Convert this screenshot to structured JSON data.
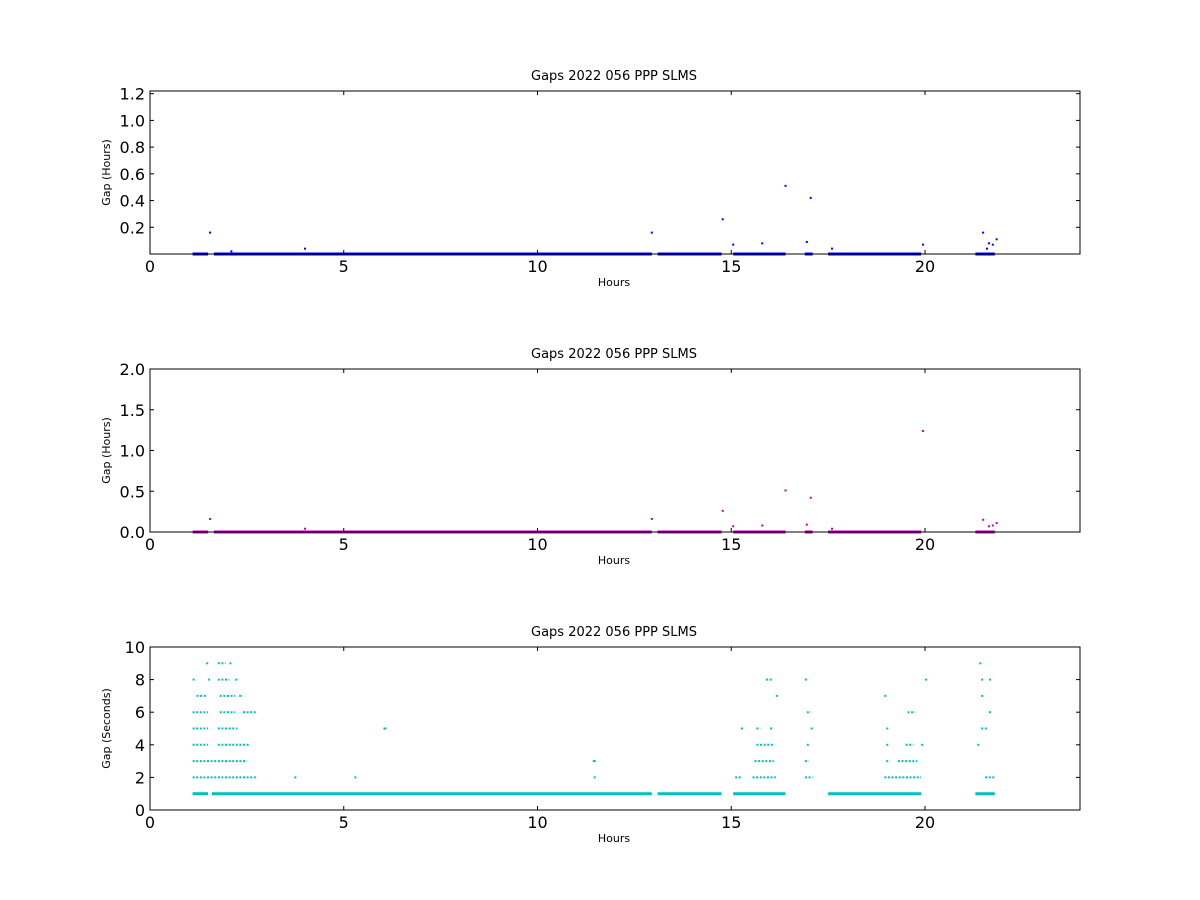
{
  "chart_data": [
    {
      "type": "scatter",
      "title": "Gaps 2022 056 PPP  SLMS",
      "xlabel": "Hours",
      "ylabel": "Gap (Hours)",
      "xlim": [
        0,
        24
      ],
      "ylim": [
        0,
        1.22
      ],
      "xticks": [
        0,
        5,
        10,
        15,
        20
      ],
      "yticks": [
        0.2,
        0.4,
        0.6,
        0.8,
        1.0,
        1.2
      ],
      "ytick_labels": [
        "0.2",
        "0.4",
        "0.6",
        "0.8",
        "1.0",
        "1.2"
      ],
      "xtick_labels": [
        "0",
        "5",
        "10",
        "15",
        "20"
      ],
      "color": "#0000ff",
      "base_segments": [
        [
          1.1,
          1.5
        ],
        [
          1.65,
          12.95
        ],
        [
          13.1,
          14.75
        ],
        [
          15.05,
          16.4
        ],
        [
          16.9,
          17.1
        ],
        [
          17.5,
          19.9
        ],
        [
          21.3,
          21.8
        ]
      ],
      "base_value": 0.0,
      "points": [
        {
          "x": 1.55,
          "y": 0.16
        },
        {
          "x": 2.1,
          "y": 0.02
        },
        {
          "x": 4.0,
          "y": 0.04
        },
        {
          "x": 12.95,
          "y": 0.16
        },
        {
          "x": 14.78,
          "y": 0.26
        },
        {
          "x": 15.05,
          "y": 0.07
        },
        {
          "x": 15.8,
          "y": 0.08
        },
        {
          "x": 16.4,
          "y": 0.51
        },
        {
          "x": 16.95,
          "y": 0.09
        },
        {
          "x": 17.05,
          "y": 0.42
        },
        {
          "x": 17.6,
          "y": 0.04
        },
        {
          "x": 19.95,
          "y": 0.07
        },
        {
          "x": 21.5,
          "y": 0.16
        },
        {
          "x": 21.6,
          "y": 0.04
        },
        {
          "x": 21.65,
          "y": 0.08
        },
        {
          "x": 21.75,
          "y": 0.07
        },
        {
          "x": 21.85,
          "y": 0.11
        }
      ]
    },
    {
      "type": "scatter",
      "title": "Gaps 2022 056 PPP  SLMS",
      "xlabel": "Hours",
      "ylabel": "Gap (Hours)",
      "xlim": [
        0,
        24
      ],
      "ylim": [
        0,
        2.0
      ],
      "xticks": [
        0,
        5,
        10,
        15,
        20
      ],
      "yticks": [
        0.0,
        0.5,
        1.0,
        1.5,
        2.0
      ],
      "ytick_labels": [
        "0.0",
        "0.5",
        "1.0",
        "1.5",
        "2.0"
      ],
      "xtick_labels": [
        "0",
        "5",
        "10",
        "15",
        "20"
      ],
      "color": "#bf00bf",
      "base_segments": [
        [
          1.1,
          1.5
        ],
        [
          1.65,
          12.95
        ],
        [
          13.1,
          14.75
        ],
        [
          15.05,
          16.4
        ],
        [
          16.9,
          17.1
        ],
        [
          17.5,
          19.9
        ],
        [
          21.3,
          21.8
        ]
      ],
      "base_value": 0.0,
      "points": [
        {
          "x": 1.55,
          "y": 0.16
        },
        {
          "x": 4.0,
          "y": 0.04
        },
        {
          "x": 12.95,
          "y": 0.16
        },
        {
          "x": 14.78,
          "y": 0.26
        },
        {
          "x": 15.05,
          "y": 0.07
        },
        {
          "x": 15.8,
          "y": 0.08
        },
        {
          "x": 16.4,
          "y": 0.51
        },
        {
          "x": 16.95,
          "y": 0.09
        },
        {
          "x": 17.05,
          "y": 0.42
        },
        {
          "x": 17.6,
          "y": 0.04
        },
        {
          "x": 19.95,
          "y": 1.24
        },
        {
          "x": 21.5,
          "y": 0.15
        },
        {
          "x": 21.65,
          "y": 0.07
        },
        {
          "x": 21.75,
          "y": 0.08
        },
        {
          "x": 21.85,
          "y": 0.11
        }
      ]
    },
    {
      "type": "scatter",
      "title": "Gaps 2022 056 PPP  SLMS",
      "xlabel": "Hours",
      "ylabel": "Gap (Seconds)",
      "xlim": [
        0,
        24
      ],
      "ylim": [
        0,
        10
      ],
      "xticks": [
        0,
        5,
        10,
        15,
        20
      ],
      "yticks": [
        0,
        2,
        4,
        6,
        8,
        10
      ],
      "ytick_labels": [
        "0",
        "2",
        "4",
        "6",
        "8",
        "10"
      ],
      "xtick_labels": [
        "0",
        "5",
        "10",
        "15",
        "20"
      ],
      "color": "#00bfbf",
      "base_segments": [
        [
          1.1,
          1.5
        ],
        [
          1.6,
          12.95
        ],
        [
          13.1,
          14.75
        ],
        [
          15.05,
          16.4
        ],
        [
          17.5,
          19.9
        ],
        [
          21.3,
          21.8
        ]
      ],
      "base_value": 1,
      "bands": [
        {
          "y": 2,
          "segments": [
            [
              1.1,
              2.75
            ],
            [
              11.45,
              11.5
            ],
            [
              15.1,
              15.25
            ],
            [
              15.55,
              16.15
            ],
            [
              16.9,
              17.1
            ],
            [
              18.95,
              19.9
            ],
            [
              21.55,
              21.8
            ]
          ]
        },
        {
          "y": 3,
          "segments": [
            [
              1.1,
              2.5
            ],
            [
              11.45,
              11.5
            ],
            [
              15.6,
              16.1
            ],
            [
              16.9,
              17.0
            ],
            [
              19.0,
              19.1
            ],
            [
              19.3,
              19.8
            ]
          ]
        },
        {
          "y": 4,
          "segments": [
            [
              1.1,
              1.5
            ],
            [
              1.75,
              2.55
            ],
            [
              15.65,
              16.1
            ],
            [
              16.95,
              17.0
            ],
            [
              19.0,
              19.05
            ],
            [
              19.5,
              19.7
            ],
            [
              19.9,
              19.95
            ],
            [
              21.35,
              21.4
            ]
          ]
        },
        {
          "y": 5,
          "segments": [
            [
              1.1,
              1.5
            ],
            [
              1.75,
              2.25
            ],
            [
              6.05,
              6.1
            ],
            [
              15.25,
              15.3
            ],
            [
              15.65,
              15.75
            ],
            [
              16.0,
              16.1
            ],
            [
              17.05,
              17.1
            ],
            [
              19.0,
              19.05
            ],
            [
              21.45,
              21.6
            ]
          ]
        },
        {
          "y": 6,
          "segments": [
            [
              1.1,
              1.5
            ],
            [
              1.8,
              2.2
            ],
            [
              2.4,
              2.75
            ],
            [
              16.95,
              17.05
            ],
            [
              19.55,
              19.75
            ],
            [
              21.65,
              21.7
            ]
          ]
        },
        {
          "y": 7,
          "segments": [
            [
              1.2,
              1.45
            ],
            [
              1.8,
              2.2
            ],
            [
              2.3,
              2.4
            ],
            [
              16.15,
              16.2
            ],
            [
              18.95,
              19.0
            ],
            [
              21.45,
              21.5
            ]
          ]
        },
        {
          "y": 8,
          "segments": [
            [
              1.1,
              1.15
            ],
            [
              1.5,
              1.55
            ],
            [
              1.75,
              2.05
            ],
            [
              2.2,
              2.3
            ],
            [
              15.9,
              16.05
            ],
            [
              16.9,
              16.95
            ],
            [
              20.0,
              20.05
            ],
            [
              21.45,
              21.5
            ],
            [
              21.65,
              21.7
            ]
          ]
        },
        {
          "y": 9,
          "segments": [
            [
              1.45,
              1.5
            ],
            [
              1.75,
              1.95
            ],
            [
              2.05,
              2.1
            ],
            [
              21.4,
              21.45
            ]
          ]
        }
      ],
      "points": [
        {
          "x": 3.75,
          "y": 2
        },
        {
          "x": 5.3,
          "y": 2
        },
        {
          "x": 6.05,
          "y": 5
        },
        {
          "x": 11.45,
          "y": 3
        }
      ]
    }
  ]
}
